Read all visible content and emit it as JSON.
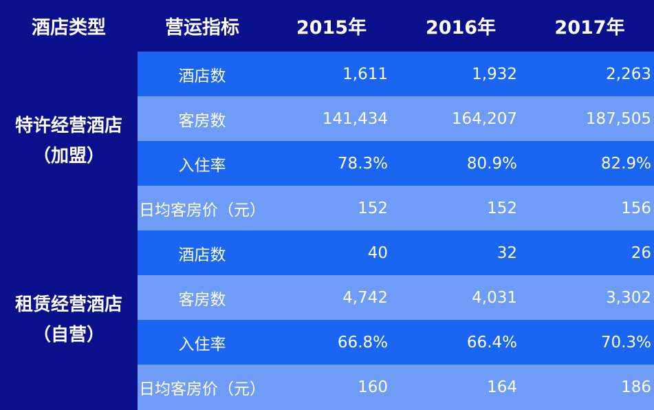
{
  "header": {
    "col_type": "酒店类型",
    "col_metric": "营运指标",
    "col_2015": "2015年",
    "col_2016": "2016年",
    "col_2017": "2017年"
  },
  "groups": [
    {
      "name_line1": "特许经营酒店",
      "name_line2": "（加盟）",
      "rows": [
        {
          "metric": "酒店数",
          "v2015": "1,611",
          "v2016": "1,932",
          "v2017": "2,263"
        },
        {
          "metric": "客房数",
          "v2015": "141,434",
          "v2016": "164,207",
          "v2017": "187,505"
        },
        {
          "metric": "入住率",
          "v2015": "78.3%",
          "v2016": "80.9%",
          "v2017": "82.9%"
        },
        {
          "metric": "日均客房价（元）",
          "v2015": "152",
          "v2016": "152",
          "v2017": "156"
        }
      ]
    },
    {
      "name_line1": "租赁经营酒店",
      "name_line2": "（自营）",
      "rows": [
        {
          "metric": "酒店数",
          "v2015": "40",
          "v2016": "32",
          "v2017": "26"
        },
        {
          "metric": "客房数",
          "v2015": "4,742",
          "v2016": "4,031",
          "v2017": "3,302"
        },
        {
          "metric": "入住率",
          "v2015": "66.8%",
          "v2016": "66.4%",
          "v2017": "70.3%"
        },
        {
          "metric": "日均客房价（元）",
          "v2015": "160",
          "v2016": "164",
          "v2017": "186"
        }
      ]
    }
  ],
  "colors": {
    "header_bg": "#0a0f8c",
    "row_dark": "#1a66f2",
    "row_light": "#6e9cf6"
  }
}
